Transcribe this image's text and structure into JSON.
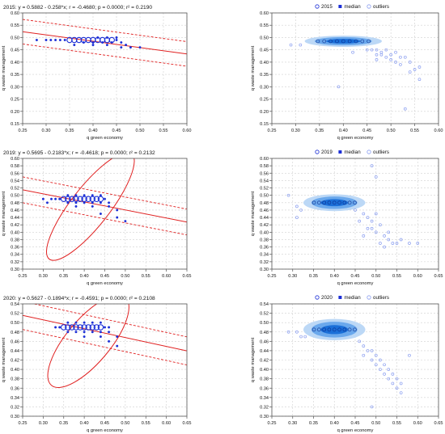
{
  "chart_data": [
    {
      "type": "scatter",
      "title": "2015: y = 0.5882 - 0.258*x; r = -0.4680; p = 0.0000; r² = 0.2190",
      "xlabel": "q green economy",
      "ylabel": "q waste management",
      "xlim": [
        0.25,
        0.6
      ],
      "ylim": [
        0.15,
        0.6
      ],
      "xticks": [
        "0.25",
        "0.30",
        "0.35",
        "0.40",
        "0.45",
        "0.50",
        "0.55",
        "0.60"
      ],
      "yticks": [
        "0.15",
        "0.20",
        "0.25",
        "0.30",
        "0.35",
        "0.40",
        "0.45",
        "0.50",
        "0.55",
        "0.60"
      ],
      "regression": {
        "intercept": 0.5882,
        "slope": -0.258,
        "band_offset": 0.05
      },
      "ellipse": null,
      "series": [
        {
          "values": [
            [
              0.28,
              0.49
            ],
            [
              0.3,
              0.49
            ],
            [
              0.31,
              0.49
            ],
            [
              0.32,
              0.49
            ],
            [
              0.33,
              0.49
            ],
            [
              0.34,
              0.49
            ],
            [
              0.35,
              0.49
            ],
            [
              0.36,
              0.49
            ],
            [
              0.37,
              0.49
            ],
            [
              0.38,
              0.49
            ],
            [
              0.39,
              0.49
            ],
            [
              0.4,
              0.49
            ],
            [
              0.41,
              0.49
            ],
            [
              0.42,
              0.49
            ],
            [
              0.43,
              0.49
            ],
            [
              0.44,
              0.49
            ],
            [
              0.45,
              0.49
            ],
            [
              0.38,
              0.48
            ],
            [
              0.4,
              0.48
            ],
            [
              0.42,
              0.48
            ],
            [
              0.44,
              0.48
            ],
            [
              0.41,
              0.5
            ],
            [
              0.43,
              0.5
            ],
            [
              0.45,
              0.5
            ],
            [
              0.4,
              0.47
            ],
            [
              0.43,
              0.47
            ],
            [
              0.46,
              0.48
            ],
            [
              0.47,
              0.47
            ],
            [
              0.36,
              0.47
            ],
            [
              0.48,
              0.46
            ],
            [
              0.46,
              0.46
            ],
            [
              0.5,
              0.46
            ]
          ]
        }
      ]
    },
    {
      "type": "scatter",
      "legend": [
        "2015",
        "median",
        "outliers"
      ],
      "xlabel": "q green economy",
      "ylabel": "q waste management",
      "xlim": [
        0.25,
        0.6
      ],
      "ylim": [
        0.15,
        0.6
      ],
      "xticks": [
        "0.25",
        "0.30",
        "0.35",
        "0.40",
        "0.45",
        "0.50",
        "0.55",
        "0.60"
      ],
      "yticks": [
        "0.15",
        "0.20",
        "0.25",
        "0.30",
        "0.35",
        "0.40",
        "0.45",
        "0.50",
        "0.55",
        "0.60"
      ],
      "density": {
        "cx": 0.4,
        "cy": 0.485,
        "rx": 0.06,
        "ry": 0.012
      },
      "series": [
        {
          "name": "outliers",
          "values": [
            [
              0.29,
              0.47
            ],
            [
              0.31,
              0.47
            ],
            [
              0.42,
              0.44
            ],
            [
              0.45,
              0.45
            ],
            [
              0.46,
              0.45
            ],
            [
              0.47,
              0.45
            ],
            [
              0.48,
              0.44
            ],
            [
              0.47,
              0.43
            ],
            [
              0.49,
              0.45
            ],
            [
              0.49,
              0.42
            ],
            [
              0.5,
              0.41
            ],
            [
              0.5,
              0.43
            ],
            [
              0.51,
              0.4
            ],
            [
              0.51,
              0.44
            ],
            [
              0.52,
              0.42
            ],
            [
              0.52,
              0.39
            ],
            [
              0.53,
              0.42
            ],
            [
              0.54,
              0.36
            ],
            [
              0.54,
              0.4
            ],
            [
              0.55,
              0.37
            ],
            [
              0.56,
              0.38
            ],
            [
              0.56,
              0.33
            ],
            [
              0.39,
              0.3
            ],
            [
              0.53,
              0.21
            ],
            [
              0.48,
              0.43
            ],
            [
              0.47,
              0.41
            ]
          ]
        }
      ]
    },
    {
      "type": "scatter",
      "title": "2019: y = 0.5695 - 0.2183*x; r = -0.4618; p = 0.0000; r² = 0.2132",
      "xlabel": "q green economy",
      "ylabel": "q waste management",
      "xlim": [
        0.25,
        0.65
      ],
      "ylim": [
        0.3,
        0.6
      ],
      "xticks": [
        "0.25",
        "0.30",
        "0.35",
        "0.40",
        "0.45",
        "0.50",
        "0.55",
        "0.60",
        "0.65"
      ],
      "yticks": [
        "0.30",
        "0.32",
        "0.34",
        "0.36",
        "0.38",
        "0.40",
        "0.42",
        "0.44",
        "0.46",
        "0.48",
        "0.50",
        "0.52",
        "0.54",
        "0.56",
        "0.58",
        "0.60"
      ],
      "regression": {
        "intercept": 0.5695,
        "slope": -0.2183,
        "band_offset": 0.035
      },
      "ellipse": {
        "cx": 0.415,
        "cy": 0.47,
        "rx": 0.163,
        "ry": 0.02,
        "angle": -52
      },
      "series": [
        {
          "values": [
            [
              0.3,
              0.49
            ],
            [
              0.31,
              0.48
            ],
            [
              0.32,
              0.49
            ],
            [
              0.33,
              0.49
            ],
            [
              0.34,
              0.49
            ],
            [
              0.35,
              0.49
            ],
            [
              0.36,
              0.49
            ],
            [
              0.37,
              0.49
            ],
            [
              0.38,
              0.49
            ],
            [
              0.39,
              0.49
            ],
            [
              0.4,
              0.49
            ],
            [
              0.41,
              0.49
            ],
            [
              0.42,
              0.49
            ],
            [
              0.43,
              0.49
            ],
            [
              0.44,
              0.49
            ],
            [
              0.45,
              0.49
            ],
            [
              0.36,
              0.5
            ],
            [
              0.38,
              0.5
            ],
            [
              0.4,
              0.5
            ],
            [
              0.42,
              0.5
            ],
            [
              0.44,
              0.5
            ],
            [
              0.36,
              0.48
            ],
            [
              0.38,
              0.48
            ],
            [
              0.4,
              0.48
            ],
            [
              0.42,
              0.48
            ],
            [
              0.44,
              0.48
            ],
            [
              0.46,
              0.48
            ],
            [
              0.38,
              0.47
            ],
            [
              0.42,
              0.47
            ],
            [
              0.46,
              0.47
            ],
            [
              0.48,
              0.46
            ],
            [
              0.44,
              0.45
            ],
            [
              0.48,
              0.44
            ],
            [
              0.5,
              0.43
            ]
          ]
        }
      ]
    },
    {
      "type": "scatter",
      "legend": [
        "2019",
        "median",
        "outliers"
      ],
      "xlabel": "q green economy",
      "ylabel": "q waste management",
      "xlim": [
        0.25,
        0.65
      ],
      "ylim": [
        0.3,
        0.6
      ],
      "xticks": [
        "0.25",
        "0.30",
        "0.35",
        "0.40",
        "0.45",
        "0.50",
        "0.55",
        "0.60",
        "0.65"
      ],
      "yticks": [
        "0.30",
        "0.32",
        "0.34",
        "0.36",
        "0.38",
        "0.40",
        "0.42",
        "0.44",
        "0.46",
        "0.48",
        "0.50",
        "0.52",
        "0.54",
        "0.56",
        "0.58",
        "0.60"
      ],
      "density": {
        "cx": 0.4,
        "cy": 0.48,
        "rx": 0.055,
        "ry": 0.012
      },
      "series": [
        {
          "name": "outliers",
          "values": [
            [
              0.29,
              0.5
            ],
            [
              0.31,
              0.47
            ],
            [
              0.32,
              0.46
            ],
            [
              0.31,
              0.44
            ],
            [
              0.45,
              0.46
            ],
            [
              0.47,
              0.45
            ],
            [
              0.48,
              0.44
            ],
            [
              0.49,
              0.43
            ],
            [
              0.5,
              0.45
            ],
            [
              0.49,
              0.41
            ],
            [
              0.51,
              0.42
            ],
            [
              0.5,
              0.4
            ],
            [
              0.52,
              0.39
            ],
            [
              0.53,
              0.4
            ],
            [
              0.51,
              0.37
            ],
            [
              0.52,
              0.36
            ],
            [
              0.53,
              0.38
            ],
            [
              0.54,
              0.37
            ],
            [
              0.55,
              0.37
            ],
            [
              0.56,
              0.38
            ],
            [
              0.58,
              0.37
            ],
            [
              0.6,
              0.37
            ],
            [
              0.49,
              0.58
            ],
            [
              0.5,
              0.55
            ],
            [
              0.46,
              0.43
            ],
            [
              0.48,
              0.41
            ],
            [
              0.47,
              0.39
            ]
          ]
        }
      ]
    },
    {
      "type": "scatter",
      "title": "2020: y = 0.5627 - 0.1894*x; r = -0.4591; p = 0.0000; r² = 0.2108",
      "xlabel": "q green economy",
      "ylabel": "q waste management",
      "xlim": [
        0.25,
        0.65
      ],
      "ylim": [
        0.3,
        0.54
      ],
      "xticks": [
        "0.25",
        "0.30",
        "0.35",
        "0.40",
        "0.45",
        "0.50",
        "0.55",
        "0.60",
        "0.65"
      ],
      "yticks": [
        "0.30",
        "0.32",
        "0.34",
        "0.36",
        "0.38",
        "0.40",
        "0.42",
        "0.44",
        "0.46",
        "0.48",
        "0.50",
        "0.52",
        "0.54"
      ],
      "regression": {
        "intercept": 0.5627,
        "slope": -0.1894,
        "band_offset": 0.03
      },
      "ellipse": {
        "cx": 0.41,
        "cy": 0.46,
        "rx": 0.14,
        "ry": 0.018,
        "angle": -50
      },
      "series": [
        {
          "values": [
            [
              0.33,
              0.49
            ],
            [
              0.34,
              0.49
            ],
            [
              0.35,
              0.49
            ],
            [
              0.36,
              0.49
            ],
            [
              0.37,
              0.49
            ],
            [
              0.38,
              0.49
            ],
            [
              0.39,
              0.49
            ],
            [
              0.4,
              0.49
            ],
            [
              0.41,
              0.49
            ],
            [
              0.42,
              0.49
            ],
            [
              0.43,
              0.49
            ],
            [
              0.44,
              0.49
            ],
            [
              0.45,
              0.49
            ],
            [
              0.46,
              0.49
            ],
            [
              0.36,
              0.5
            ],
            [
              0.38,
              0.5
            ],
            [
              0.4,
              0.5
            ],
            [
              0.42,
              0.5
            ],
            [
              0.44,
              0.5
            ],
            [
              0.36,
              0.48
            ],
            [
              0.38,
              0.48
            ],
            [
              0.4,
              0.48
            ],
            [
              0.42,
              0.48
            ],
            [
              0.44,
              0.48
            ],
            [
              0.46,
              0.48
            ],
            [
              0.4,
              0.47
            ],
            [
              0.44,
              0.47
            ],
            [
              0.48,
              0.47
            ],
            [
              0.46,
              0.46
            ],
            [
              0.48,
              0.45
            ]
          ]
        }
      ]
    },
    {
      "type": "scatter",
      "legend": [
        "2020",
        "median",
        "outliers"
      ],
      "xlabel": "q green economy",
      "ylabel": "q waste management",
      "xlim": [
        0.25,
        0.65
      ],
      "ylim": [
        0.3,
        0.54
      ],
      "xticks": [
        "0.25",
        "0.30",
        "0.35",
        "0.40",
        "0.45",
        "0.50",
        "0.55",
        "0.60",
        "0.65"
      ],
      "yticks": [
        "0.30",
        "0.32",
        "0.34",
        "0.36",
        "0.38",
        "0.40",
        "0.42",
        "0.44",
        "0.46",
        "0.48",
        "0.50",
        "0.52",
        "0.54"
      ],
      "density": {
        "cx": 0.4,
        "cy": 0.485,
        "rx": 0.055,
        "ry": 0.012
      },
      "series": [
        {
          "name": "outliers",
          "values": [
            [
              0.29,
              0.48
            ],
            [
              0.31,
              0.48
            ],
            [
              0.32,
              0.47
            ],
            [
              0.33,
              0.47
            ],
            [
              0.46,
              0.46
            ],
            [
              0.47,
              0.45
            ],
            [
              0.48,
              0.44
            ],
            [
              0.47,
              0.43
            ],
            [
              0.49,
              0.44
            ],
            [
              0.49,
              0.42
            ],
            [
              0.5,
              0.43
            ],
            [
              0.5,
              0.41
            ],
            [
              0.51,
              0.42
            ],
            [
              0.51,
              0.4
            ],
            [
              0.52,
              0.41
            ],
            [
              0.52,
              0.39
            ],
            [
              0.53,
              0.4
            ],
            [
              0.53,
              0.38
            ],
            [
              0.54,
              0.39
            ],
            [
              0.54,
              0.37
            ],
            [
              0.55,
              0.38
            ],
            [
              0.55,
              0.36
            ],
            [
              0.56,
              0.37
            ],
            [
              0.56,
              0.35
            ],
            [
              0.58,
              0.43
            ],
            [
              0.49,
              0.32
            ]
          ]
        }
      ]
    }
  ],
  "colors": {
    "point": "#1c2fd6",
    "regression": "#e02020",
    "light_point": "#8a9ef0",
    "density_dark": "#1a6fd8",
    "density_light": "#bcd8f6",
    "frame": "#555555",
    "grid": "#d0d0d0",
    "text": "#111111"
  }
}
